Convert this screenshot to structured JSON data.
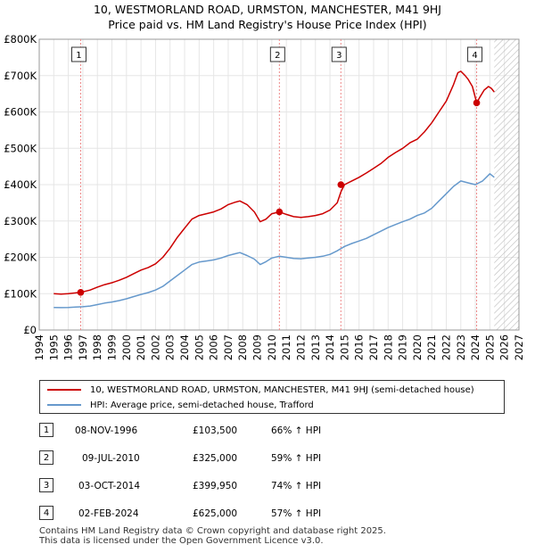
{
  "title_line1": "10, WESTMORLAND ROAD, URMSTON, MANCHESTER, M41 9HJ",
  "title_line2": "Price paid vs. HM Land Registry's House Price Index (HPI)",
  "chart_data": {
    "type": "line",
    "ylim": [
      0,
      800000
    ],
    "xlim": [
      1994,
      2027
    ],
    "y_ticks": [
      0,
      100000,
      200000,
      300000,
      400000,
      500000,
      600000,
      700000,
      800000
    ],
    "y_tick_labels": [
      "£0",
      "£100K",
      "£200K",
      "£300K",
      "£400K",
      "£500K",
      "£600K",
      "£700K",
      "£800K"
    ],
    "x_ticks": [
      1994,
      1995,
      1996,
      1997,
      1998,
      1999,
      2000,
      2001,
      2002,
      2003,
      2004,
      2005,
      2006,
      2007,
      2008,
      2009,
      2010,
      2011,
      2012,
      2013,
      2014,
      2015,
      2016,
      2017,
      2018,
      2019,
      2020,
      2021,
      2022,
      2023,
      2024,
      2025,
      2026,
      2027
    ],
    "x_tick_labels": [
      "1994",
      "1995",
      "1996",
      "1997",
      "1998",
      "1999",
      "2000",
      "2001",
      "2002",
      "2003",
      "2004",
      "2005",
      "2006",
      "2007",
      "2008",
      "2009",
      "2010",
      "2011",
      "2012",
      "2013",
      "2014",
      "2015",
      "2016",
      "2017",
      "2018",
      "2019",
      "2020",
      "2021",
      "2022",
      "2023",
      "2024",
      "2025",
      "2026",
      "2027"
    ],
    "data_end_year": 2025.3,
    "series": [
      {
        "name": "10, WESTMORLAND ROAD, URMSTON, MANCHESTER, M41 9HJ (semi-detached house)",
        "color": "#cc0000",
        "x": [
          1995.0,
          1995.5,
          1996.0,
          1996.5,
          1996.85,
          1997.5,
          1998.0,
          1998.5,
          1999.0,
          1999.5,
          2000.0,
          2000.5,
          2001.0,
          2001.5,
          2002.0,
          2002.5,
          2003.0,
          2003.5,
          2004.0,
          2004.5,
          2005.0,
          2005.5,
          2006.0,
          2006.5,
          2007.0,
          2007.5,
          2007.8,
          2008.3,
          2008.8,
          2009.2,
          2009.6,
          2010.0,
          2010.52,
          2011.0,
          2011.5,
          2012.0,
          2012.5,
          2013.0,
          2013.5,
          2014.0,
          2014.5,
          2014.75,
          2015.0,
          2015.5,
          2016.0,
          2016.5,
          2017.0,
          2017.5,
          2018.0,
          2018.5,
          2019.0,
          2019.5,
          2020.0,
          2020.5,
          2021.0,
          2021.5,
          2022.0,
          2022.5,
          2022.8,
          2023.0,
          2023.3,
          2023.5,
          2023.8,
          2024.09,
          2024.3,
          2024.6,
          2024.9,
          2025.1,
          2025.3
        ],
        "y": [
          100000,
          99000,
          100000,
          102000,
          103500,
          110000,
          118000,
          125000,
          130000,
          137000,
          145000,
          155000,
          165000,
          172000,
          182000,
          200000,
          225000,
          255000,
          280000,
          305000,
          315000,
          320000,
          325000,
          333000,
          345000,
          352000,
          355000,
          345000,
          325000,
          298000,
          305000,
          320000,
          325000,
          318000,
          312000,
          310000,
          312000,
          315000,
          320000,
          330000,
          350000,
          380000,
          399950,
          410000,
          420000,
          432000,
          445000,
          458000,
          475000,
          488000,
          500000,
          515000,
          525000,
          545000,
          570000,
          600000,
          630000,
          675000,
          708000,
          712000,
          700000,
          690000,
          670000,
          625000,
          640000,
          660000,
          670000,
          665000,
          655000
        ]
      },
      {
        "name": "HPI: Average price, semi-detached house, Trafford",
        "color": "#6699cc",
        "x": [
          1995.0,
          1995.5,
          1996.0,
          1996.5,
          1997.0,
          1997.5,
          1998.0,
          1998.5,
          1999.0,
          1999.5,
          2000.0,
          2000.5,
          2001.0,
          2001.5,
          2002.0,
          2002.5,
          2003.0,
          2003.5,
          2004.0,
          2004.5,
          2005.0,
          2005.5,
          2006.0,
          2006.5,
          2007.0,
          2007.5,
          2007.8,
          2008.3,
          2008.8,
          2009.2,
          2009.6,
          2010.0,
          2010.5,
          2011.0,
          2011.5,
          2012.0,
          2012.5,
          2013.0,
          2013.5,
          2014.0,
          2014.5,
          2015.0,
          2015.5,
          2016.0,
          2016.5,
          2017.0,
          2017.5,
          2018.0,
          2018.5,
          2019.0,
          2019.5,
          2020.0,
          2020.5,
          2021.0,
          2021.5,
          2022.0,
          2022.5,
          2023.0,
          2023.5,
          2024.0,
          2024.5,
          2025.0,
          2025.3
        ],
        "y": [
          62000,
          61500,
          62000,
          63000,
          64000,
          66000,
          70000,
          74000,
          77000,
          81000,
          86000,
          92000,
          98000,
          103000,
          110000,
          120000,
          135000,
          150000,
          165000,
          180000,
          187000,
          190000,
          193000,
          198000,
          205000,
          210000,
          213000,
          205000,
          195000,
          180000,
          188000,
          198000,
          203000,
          200000,
          197000,
          196000,
          198000,
          200000,
          203000,
          208000,
          218000,
          230000,
          238000,
          245000,
          252000,
          262000,
          272000,
          282000,
          290000,
          298000,
          305000,
          315000,
          322000,
          335000,
          355000,
          375000,
          395000,
          410000,
          405000,
          400000,
          410000,
          430000,
          420000
        ]
      }
    ],
    "transactions_x": [
      1996.85,
      2010.52,
      2014.75,
      2024.09
    ],
    "transactions_y": [
      103500,
      325000,
      399950,
      625000
    ],
    "marker_labels": [
      "1",
      "2",
      "3",
      "4"
    ],
    "future_hatch_from": 2025.3
  },
  "legend": {
    "items": [
      {
        "label": "10, WESTMORLAND ROAD, URMSTON, MANCHESTER, M41 9HJ (semi-detached house)",
        "color": "#cc0000"
      },
      {
        "label": "HPI: Average price, semi-detached house, Trafford",
        "color": "#6699cc"
      }
    ]
  },
  "transactions": [
    {
      "num": "1",
      "date": "08-NOV-1996",
      "price": "£103,500",
      "hpi": "66% ↑ HPI"
    },
    {
      "num": "2",
      "date": "09-JUL-2010",
      "price": "£325,000",
      "hpi": "59% ↑ HPI"
    },
    {
      "num": "3",
      "date": "03-OCT-2014",
      "price": "£399,950",
      "hpi": "74% ↑ HPI"
    },
    {
      "num": "4",
      "date": "02-FEB-2024",
      "price": "£625,000",
      "hpi": "57% ↑ HPI"
    }
  ],
  "footer": {
    "line1": "Contains HM Land Registry data © Crown copyright and database right 2025.",
    "line2": "This data is licensed under the Open Government Licence v3.0."
  }
}
